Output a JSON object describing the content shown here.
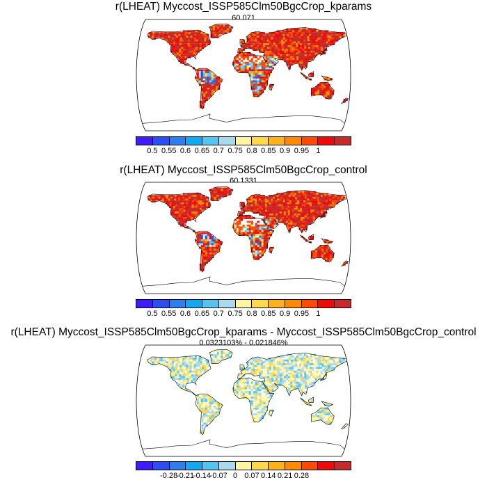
{
  "panels": [
    {
      "title": "r(LHEAT) Myccost_ISSP585Clm50BgcCrop_kparams",
      "subtitle": "60.071",
      "colorbar": {
        "colors": [
          "#3f1bff",
          "#2c4df2",
          "#2e7ef0",
          "#12a8f2",
          "#52c6f0",
          "#a9d9ee",
          "#fff5a0",
          "#ffd94a",
          "#ffb21a",
          "#ff8a00",
          "#ff4a00",
          "#ee0a0a",
          "#c72a2a"
        ],
        "labels": [
          "0.5",
          "0.55",
          "0.6",
          "0.65",
          "0.7",
          "0.75",
          "0.8",
          "0.85",
          "0.9",
          "0.95",
          "1"
        ]
      },
      "map_style": "high"
    },
    {
      "title": "r(LHEAT) Myccost_ISSP585Clm50BgcCrop_control",
      "subtitle": "60.1331",
      "colorbar": {
        "colors": [
          "#3f1bff",
          "#2c4df2",
          "#2e7ef0",
          "#12a8f2",
          "#52c6f0",
          "#a9d9ee",
          "#fff5a0",
          "#ffd94a",
          "#ffb21a",
          "#ff8a00",
          "#ff4a00",
          "#ee0a0a",
          "#c72a2a"
        ],
        "labels": [
          "0.5",
          "0.55",
          "0.6",
          "0.65",
          "0.7",
          "0.75",
          "0.8",
          "0.85",
          "0.9",
          "0.95",
          "1"
        ]
      },
      "map_style": "high"
    },
    {
      "title": "r(LHEAT) Myccost_ISSP585Clm50BgcCrop_kparams - Myccost_ISSP585Clm50BgcCrop_control",
      "subtitle": "0.0323103% - 0.021846%",
      "colorbar": {
        "colors": [
          "#3f1bff",
          "#2c4df2",
          "#2e7ef0",
          "#12a8f2",
          "#52c6f0",
          "#a9d9ee",
          "#fff5a0",
          "#ffd94a",
          "#ffb21a",
          "#ff8a00",
          "#ff4a00",
          "#ee0a0a",
          "#c72a2a"
        ],
        "labels": [
          "-0.28",
          "-0.21",
          "-0.14",
          "-0.07",
          "0",
          "0.07",
          "0.14",
          "0.21",
          "0.28"
        ]
      },
      "map_style": "diff"
    }
  ]
}
